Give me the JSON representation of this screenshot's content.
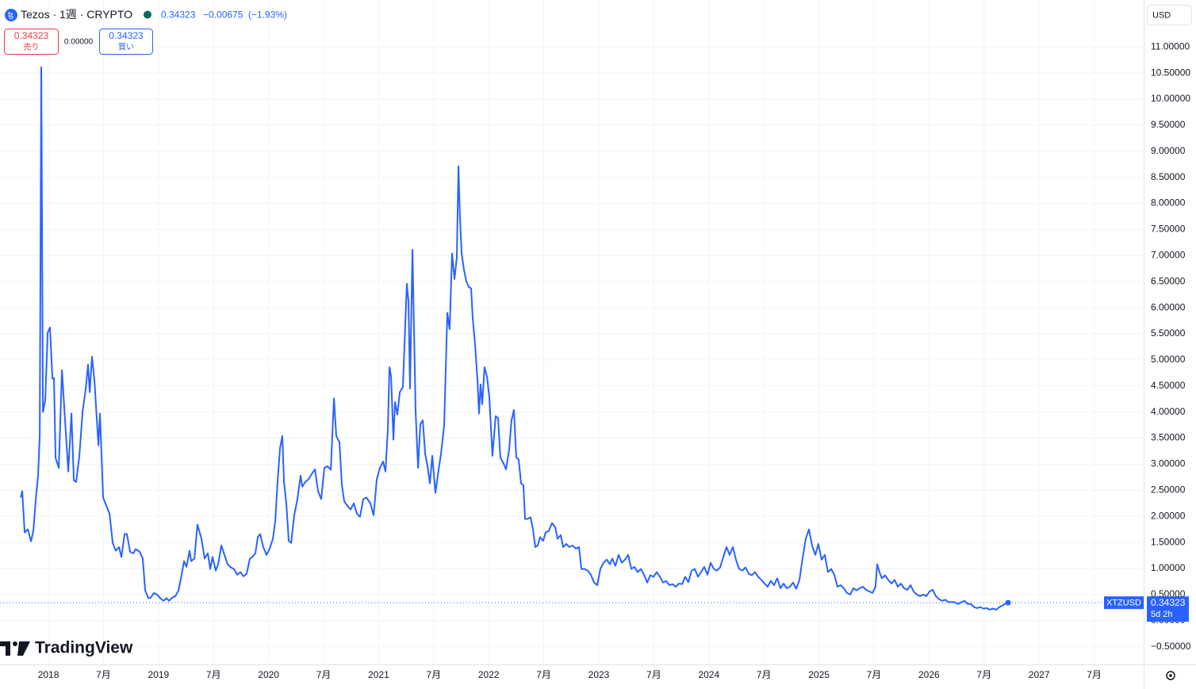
{
  "header": {
    "symbol": "Tezos · 1週 · CRYPTO",
    "price": "0.34323",
    "change": "−0.00675",
    "change_pct": "(−1.93%)"
  },
  "trade": {
    "sell_price": "0.34323",
    "sell_label": "売り",
    "spread": "0.00000",
    "buy_price": "0.34323",
    "buy_label": "買い"
  },
  "currency": "USD",
  "logo": "TradingView",
  "chart_data": {
    "type": "line",
    "x": [
      2017.748,
      2017.762,
      2017.784,
      2017.813,
      2017.842,
      2017.863,
      2017.885,
      2017.906,
      2017.921,
      2017.935,
      2017.95,
      2017.971,
      2017.993,
      2018.014,
      2018.036,
      2018.05,
      2018.065,
      2018.094,
      2018.123,
      2018.151,
      2018.18,
      2018.209,
      2018.231,
      2018.252,
      2018.281,
      2018.31,
      2018.339,
      2018.36,
      2018.375,
      2018.396,
      2018.418,
      2018.454,
      2018.468,
      2018.497,
      2018.526,
      2018.555,
      2018.584,
      2018.612,
      2018.641,
      2018.663,
      2018.692,
      2018.713,
      2018.742,
      2018.771,
      2018.793,
      2018.829,
      2018.857,
      2018.879,
      2018.908,
      2018.929,
      2018.958,
      2018.987,
      2019.016,
      2019.045,
      2019.073,
      2019.095,
      2019.124,
      2019.153,
      2019.182,
      2019.21,
      2019.232,
      2019.254,
      2019.282,
      2019.297,
      2019.326,
      2019.354,
      2019.39,
      2019.419,
      2019.448,
      2019.47,
      2019.491,
      2019.52,
      2019.542,
      2019.571,
      2019.599,
      2019.628,
      2019.657,
      2019.686,
      2019.715,
      2019.744,
      2019.772,
      2019.801,
      2019.83,
      2019.852,
      2019.88,
      2019.902,
      2019.924,
      2019.952,
      2019.981,
      2020.01,
      2020.039,
      2020.061,
      2020.082,
      2020.104,
      2020.125,
      2020.14,
      2020.161,
      2020.183,
      2020.205,
      2020.233,
      2020.262,
      2020.291,
      2020.306,
      2020.334,
      2020.363,
      2020.392,
      2020.421,
      2020.45,
      2020.478,
      2020.507,
      2020.536,
      2020.565,
      2020.594,
      2020.615,
      2020.644,
      2020.666,
      2020.687,
      2020.716,
      2020.745,
      2020.774,
      2020.803,
      2020.831,
      2020.86,
      2020.889,
      2020.925,
      2020.954,
      2020.983,
      2021.012,
      2021.04,
      2021.062,
      2021.084,
      2021.098,
      2021.113,
      2021.134,
      2021.149,
      2021.17,
      2021.192,
      2021.22,
      2021.242,
      2021.256,
      2021.271,
      2021.285,
      2021.307,
      2021.336,
      2021.358,
      2021.379,
      2021.401,
      2021.423,
      2021.444,
      2021.465,
      2021.487,
      2021.516,
      2021.545,
      2021.566,
      2021.595,
      2021.624,
      2021.645,
      2021.667,
      2021.689,
      2021.71,
      2021.725,
      2021.739,
      2021.754,
      2021.775,
      2021.797,
      2021.818,
      2021.84,
      2021.854,
      2021.876,
      2021.898,
      2021.912,
      2021.926,
      2021.941,
      2021.962,
      2021.984,
      2022.005,
      2022.034,
      2022.063,
      2022.085,
      2022.106,
      2022.135,
      2022.157,
      2022.185,
      2022.207,
      2022.229,
      2022.25,
      2022.272,
      2022.294,
      2022.315,
      2022.33,
      2022.351,
      2022.38,
      2022.402,
      2022.423,
      2022.445,
      2022.467,
      2022.495,
      2022.517,
      2022.546,
      2022.575,
      2022.604,
      2022.625,
      2022.654,
      2022.676,
      2022.704,
      2022.733,
      2022.762,
      2022.791,
      2022.82,
      2022.842,
      2022.87,
      2022.899,
      2022.928,
      2022.957,
      2022.986,
      2023.014,
      2023.043,
      2023.072,
      2023.101,
      2023.123,
      2023.151,
      2023.18,
      2023.209,
      2023.238,
      2023.267,
      2023.296,
      2023.324,
      2023.353,
      2023.382,
      2023.411,
      2023.44,
      2023.468,
      2023.497,
      2023.526,
      2023.555,
      2023.584,
      2023.612,
      2023.641,
      2023.67,
      2023.699,
      2023.728,
      2023.757,
      2023.785,
      2023.814,
      2023.843,
      2023.872,
      2023.901,
      2023.929,
      2023.958,
      2023.987,
      2024.016,
      2024.045,
      2024.073,
      2024.102,
      2024.131,
      2024.16,
      2024.189,
      2024.218,
      2024.246,
      2024.275,
      2024.304,
      2024.333,
      2024.362,
      2024.39,
      2024.419,
      2024.448,
      2024.477,
      2024.506,
      2024.534,
      2024.563,
      2024.592,
      2024.621,
      2024.65,
      2024.679,
      2024.707,
      2024.736,
      2024.765,
      2024.794,
      2024.823,
      2024.851,
      2024.88,
      2024.909,
      2024.938,
      2024.967,
      2024.995,
      2025.024,
      2025.053,
      2025.082,
      2025.111,
      2025.14,
      2025.168,
      2025.197,
      2025.226,
      2025.255,
      2025.284,
      2025.313,
      2025.341,
      2025.37,
      2025.399,
      2025.428,
      2025.457,
      2025.486,
      2025.514,
      2025.529,
      2025.55,
      2025.572,
      2025.601,
      2025.63,
      2025.659,
      2025.688,
      2025.716,
      2025.745,
      2025.774,
      2025.803,
      2025.832,
      2025.86,
      2025.889,
      2025.918,
      2025.947,
      2025.976,
      2026.005,
      2026.034,
      2026.062,
      2026.091,
      2026.12,
      2026.149,
      2026.178,
      2026.206,
      2026.235,
      2026.264,
      2026.293,
      2026.322,
      2026.35,
      2026.379,
      2026.408,
      2026.437,
      2026.466,
      2026.495,
      2026.523,
      2026.552,
      2026.581,
      2026.61,
      2026.639,
      2026.668,
      2026.696,
      2026.718
    ],
    "series": [
      {
        "name": "XTZUSD",
        "color": "#2962ff",
        "values": [
          2.36,
          2.48,
          1.69,
          1.75,
          1.52,
          1.72,
          2.33,
          2.78,
          3.54,
          10.61,
          4.0,
          4.22,
          5.52,
          5.62,
          4.64,
          4.65,
          3.12,
          2.93,
          4.8,
          3.84,
          2.86,
          3.97,
          2.69,
          2.66,
          3.16,
          4.0,
          4.45,
          4.91,
          4.38,
          5.06,
          4.6,
          3.36,
          3.97,
          2.36,
          2.2,
          2.05,
          1.49,
          1.34,
          1.41,
          1.22,
          1.66,
          1.66,
          1.32,
          1.29,
          1.37,
          1.32,
          1.19,
          0.58,
          0.43,
          0.44,
          0.53,
          0.5,
          0.43,
          0.38,
          0.43,
          0.38,
          0.44,
          0.47,
          0.58,
          0.88,
          1.14,
          1.03,
          1.34,
          1.14,
          1.19,
          1.84,
          1.57,
          1.19,
          1.29,
          0.99,
          1.22,
          0.96,
          1.08,
          1.44,
          1.26,
          1.08,
          1.02,
          0.99,
          0.88,
          0.93,
          0.85,
          0.9,
          1.19,
          1.22,
          1.29,
          1.6,
          1.66,
          1.41,
          1.26,
          1.38,
          1.57,
          1.91,
          2.67,
          3.31,
          3.54,
          2.66,
          2.25,
          1.53,
          1.49,
          2.02,
          2.33,
          2.78,
          2.57,
          2.66,
          2.71,
          2.81,
          2.9,
          2.48,
          2.33,
          2.93,
          2.96,
          2.89,
          4.26,
          3.54,
          3.42,
          2.6,
          2.29,
          2.2,
          2.13,
          2.25,
          2.05,
          1.99,
          2.33,
          2.36,
          2.25,
          2.02,
          2.71,
          2.93,
          3.05,
          2.86,
          3.69,
          4.86,
          4.68,
          3.47,
          4.19,
          3.95,
          4.38,
          4.48,
          5.67,
          6.46,
          6.12,
          4.45,
          7.11,
          4.0,
          2.93,
          3.77,
          3.84,
          3.19,
          2.96,
          2.63,
          3.16,
          2.45,
          2.9,
          3.19,
          3.74,
          5.9,
          5.59,
          7.04,
          6.55,
          6.96,
          8.71,
          7.72,
          7.04,
          6.73,
          6.5,
          6.4,
          6.37,
          5.82,
          5.29,
          4.6,
          3.97,
          4.53,
          4.15,
          4.86,
          4.68,
          4.3,
          3.16,
          3.92,
          3.88,
          3.13,
          3.01,
          2.9,
          3.27,
          3.84,
          4.04,
          3.13,
          3.09,
          2.63,
          2.6,
          1.95,
          1.95,
          1.98,
          1.75,
          1.41,
          1.44,
          1.6,
          1.53,
          1.69,
          1.72,
          1.87,
          1.79,
          1.57,
          1.64,
          1.41,
          1.47,
          1.41,
          1.44,
          1.38,
          1.41,
          0.99,
          0.99,
          0.96,
          0.88,
          0.73,
          0.68,
          0.99,
          1.11,
          1.17,
          1.08,
          1.19,
          1.05,
          1.26,
          1.11,
          1.17,
          1.26,
          0.99,
          1.03,
          0.93,
          0.99,
          0.88,
          0.73,
          0.87,
          0.84,
          0.93,
          0.84,
          0.73,
          0.76,
          0.68,
          0.7,
          0.65,
          0.71,
          0.7,
          0.84,
          0.74,
          0.96,
          0.99,
          0.84,
          0.93,
          1.03,
          0.88,
          1.11,
          0.99,
          0.96,
          1.02,
          1.22,
          1.41,
          1.26,
          1.41,
          1.17,
          0.99,
          0.96,
          1.02,
          0.9,
          0.87,
          0.93,
          0.84,
          0.78,
          0.71,
          0.65,
          0.76,
          0.68,
          0.81,
          0.62,
          0.71,
          0.62,
          0.65,
          0.73,
          0.61,
          0.78,
          1.19,
          1.57,
          1.75,
          1.44,
          1.26,
          1.47,
          1.17,
          1.26,
          0.93,
          0.99,
          0.88,
          0.65,
          0.68,
          0.62,
          0.53,
          0.5,
          0.62,
          0.58,
          0.62,
          0.65,
          0.59,
          0.56,
          0.53,
          0.65,
          1.08,
          0.93,
          0.81,
          0.87,
          0.78,
          0.71,
          0.78,
          0.65,
          0.71,
          0.62,
          0.59,
          0.68,
          0.56,
          0.5,
          0.47,
          0.5,
          0.47,
          0.56,
          0.59,
          0.47,
          0.41,
          0.38,
          0.4,
          0.35,
          0.36,
          0.35,
          0.32,
          0.35,
          0.38,
          0.32,
          0.32,
          0.26,
          0.24,
          0.26,
          0.23,
          0.24,
          0.21,
          0.23,
          0.21,
          0.26,
          0.29,
          0.33,
          0.34323
        ]
      }
    ],
    "xlim": [
      2017.56,
      2027.95
    ],
    "ylim": [
      -0.84,
      11.9
    ],
    "xticks": [
      2018,
      {
        "value": 2018.5,
        "label": "7月"
      },
      2019,
      {
        "value": 2019.5,
        "label": "7月"
      },
      2020,
      {
        "value": 2020.5,
        "label": "7月"
      },
      2021,
      {
        "value": 2021.5,
        "label": "7月"
      },
      2022,
      {
        "value": 2022.5,
        "label": "7月"
      },
      2023,
      {
        "value": 2023.5,
        "label": "7月"
      },
      2024,
      {
        "value": 2024.5,
        "label": "7月"
      },
      2025,
      {
        "value": 2025.5,
        "label": "7月"
      },
      2026,
      {
        "value": 2026.5,
        "label": "7月"
      },
      2027,
      {
        "value": 2027.5,
        "label": "7月"
      }
    ],
    "yticks": [
      {
        "value": -0.5,
        "label": "−0.50000"
      },
      {
        "value": 0,
        "label": "0.00000"
      },
      {
        "value": 0.5,
        "label": "0.50000"
      },
      {
        "value": 1,
        "label": "1.00000"
      },
      {
        "value": 1.5,
        "label": "1.50000"
      },
      {
        "value": 2,
        "label": "2.00000"
      },
      {
        "value": 2.5,
        "label": "2.50000"
      },
      {
        "value": 3,
        "label": "3.00000"
      },
      {
        "value": 3.5,
        "label": "3.50000"
      },
      {
        "value": 4,
        "label": "4.00000"
      },
      {
        "value": 4.5,
        "label": "4.50000"
      },
      {
        "value": 5,
        "label": "5.00000"
      },
      {
        "value": 5.5,
        "label": "5.50000"
      },
      {
        "value": 6,
        "label": "6.00000"
      },
      {
        "value": 6.5,
        "label": "6.50000"
      },
      {
        "value": 7,
        "label": "7.00000"
      },
      {
        "value": 7.5,
        "label": "7.50000"
      },
      {
        "value": 8,
        "label": "8.00000"
      },
      {
        "value": 8.5,
        "label": "8.50000"
      },
      {
        "value": 9,
        "label": "9.00000"
      },
      {
        "value": 9.5,
        "label": "9.50000"
      },
      {
        "value": 10,
        "label": "10.00000"
      },
      {
        "value": 10.5,
        "label": "10.50000"
      },
      {
        "value": 11,
        "label": "11.00000"
      }
    ],
    "grid": true,
    "price_tag": {
      "value": "0.34323",
      "countdown": "5d 2h"
    }
  }
}
